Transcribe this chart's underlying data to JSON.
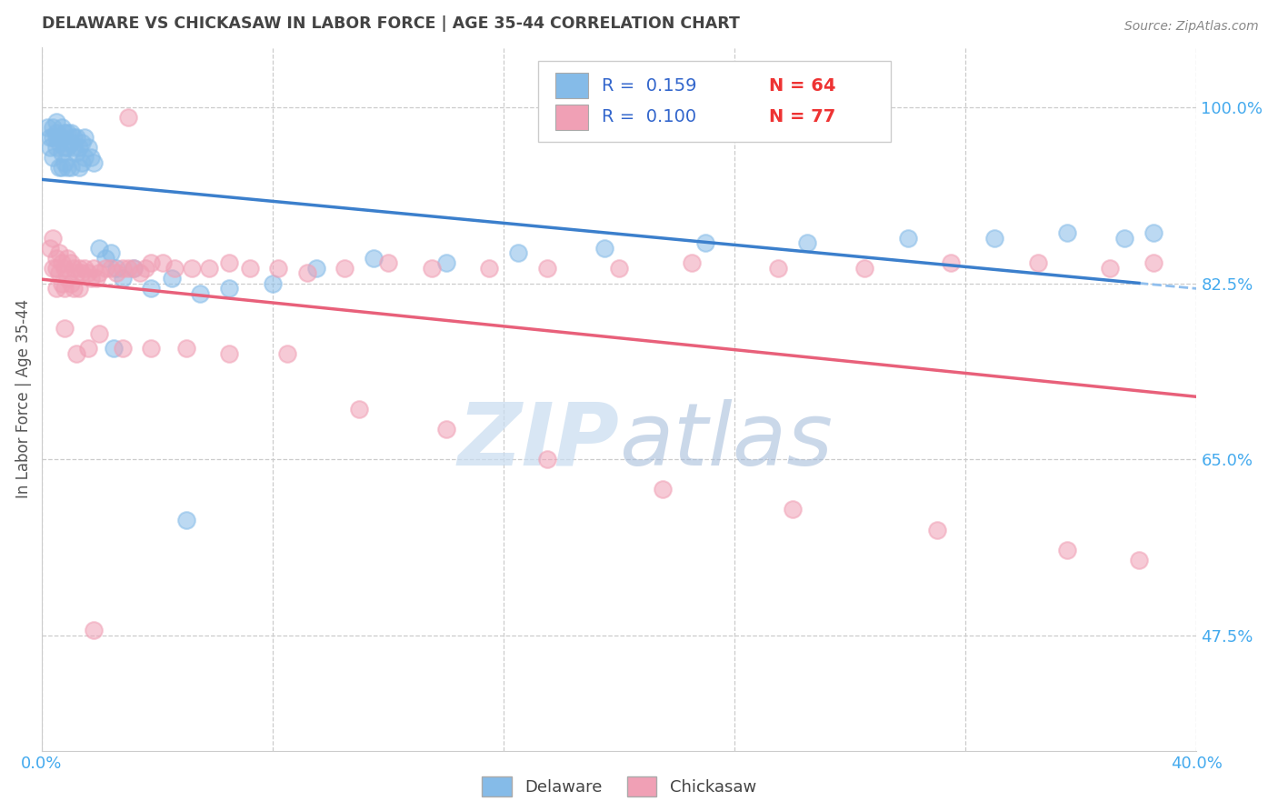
{
  "title": "DELAWARE VS CHICKASAW IN LABOR FORCE | AGE 35-44 CORRELATION CHART",
  "source": "Source: ZipAtlas.com",
  "ylabel": "In Labor Force | Age 35-44",
  "xlim": [
    0.0,
    0.4
  ],
  "ylim": [
    0.36,
    1.06
  ],
  "ytick_labels_right": [
    "100.0%",
    "82.5%",
    "65.0%",
    "47.5%"
  ],
  "ytick_vals_right": [
    1.0,
    0.825,
    0.65,
    0.475
  ],
  "watermark_zip": "ZIP",
  "watermark_atlas": "atlas",
  "delaware_R": 0.159,
  "delaware_N": 64,
  "chickasaw_R": 0.1,
  "chickasaw_N": 77,
  "delaware_color": "#85BBE8",
  "chickasaw_color": "#F0A0B5",
  "delaware_line_color": "#3B7FCC",
  "chickasaw_line_color": "#E8607A",
  "dashed_line_color": "#90BFEE",
  "grid_color": "#CCCCCC",
  "background_color": "#FFFFFF",
  "title_color": "#444444",
  "axis_label_color": "#555555",
  "right_tick_color": "#44AAEE",
  "legend_R_color": "#3366CC",
  "legend_N_color": "#EE3333",
  "del_x": [
    0.002,
    0.003,
    0.003,
    0.004,
    0.004,
    0.004,
    0.005,
    0.005,
    0.005,
    0.005,
    0.006,
    0.006,
    0.006,
    0.007,
    0.007,
    0.007,
    0.007,
    0.008,
    0.008,
    0.008,
    0.009,
    0.009,
    0.009,
    0.01,
    0.01,
    0.01,
    0.011,
    0.011,
    0.012,
    0.012,
    0.013,
    0.013,
    0.014,
    0.014,
    0.015,
    0.015,
    0.016,
    0.017,
    0.018,
    0.02,
    0.022,
    0.024,
    0.026,
    0.028,
    0.032,
    0.038,
    0.045,
    0.055,
    0.065,
    0.08,
    0.095,
    0.115,
    0.14,
    0.165,
    0.195,
    0.23,
    0.265,
    0.3,
    0.33,
    0.355,
    0.375,
    0.385,
    0.025,
    0.05
  ],
  "del_y": [
    0.98,
    0.97,
    0.96,
    0.98,
    0.97,
    0.95,
    0.985,
    0.975,
    0.97,
    0.96,
    0.97,
    0.965,
    0.94,
    0.98,
    0.97,
    0.955,
    0.94,
    0.975,
    0.96,
    0.945,
    0.975,
    0.96,
    0.94,
    0.975,
    0.965,
    0.94,
    0.97,
    0.96,
    0.97,
    0.955,
    0.96,
    0.94,
    0.965,
    0.945,
    0.97,
    0.95,
    0.96,
    0.95,
    0.945,
    0.86,
    0.85,
    0.855,
    0.84,
    0.83,
    0.84,
    0.82,
    0.83,
    0.815,
    0.82,
    0.825,
    0.84,
    0.85,
    0.845,
    0.855,
    0.86,
    0.865,
    0.865,
    0.87,
    0.87,
    0.875,
    0.87,
    0.875,
    0.76,
    0.59
  ],
  "chick_x": [
    0.003,
    0.004,
    0.004,
    0.005,
    0.005,
    0.005,
    0.006,
    0.006,
    0.007,
    0.007,
    0.008,
    0.008,
    0.009,
    0.009,
    0.01,
    0.01,
    0.011,
    0.011,
    0.012,
    0.013,
    0.013,
    0.014,
    0.015,
    0.016,
    0.017,
    0.018,
    0.019,
    0.02,
    0.022,
    0.024,
    0.026,
    0.028,
    0.03,
    0.032,
    0.034,
    0.036,
    0.038,
    0.042,
    0.046,
    0.052,
    0.058,
    0.065,
    0.072,
    0.082,
    0.092,
    0.105,
    0.12,
    0.135,
    0.155,
    0.175,
    0.2,
    0.225,
    0.255,
    0.285,
    0.315,
    0.345,
    0.37,
    0.385,
    0.008,
    0.012,
    0.016,
    0.02,
    0.028,
    0.038,
    0.05,
    0.065,
    0.085,
    0.11,
    0.14,
    0.175,
    0.215,
    0.26,
    0.31,
    0.355,
    0.38,
    0.018,
    0.03
  ],
  "chick_y": [
    0.86,
    0.87,
    0.84,
    0.85,
    0.84,
    0.82,
    0.855,
    0.835,
    0.845,
    0.825,
    0.84,
    0.82,
    0.85,
    0.83,
    0.845,
    0.825,
    0.84,
    0.82,
    0.835,
    0.84,
    0.82,
    0.835,
    0.84,
    0.835,
    0.83,
    0.84,
    0.83,
    0.835,
    0.84,
    0.84,
    0.835,
    0.84,
    0.84,
    0.84,
    0.835,
    0.84,
    0.845,
    0.845,
    0.84,
    0.84,
    0.84,
    0.845,
    0.84,
    0.84,
    0.835,
    0.84,
    0.845,
    0.84,
    0.84,
    0.84,
    0.84,
    0.845,
    0.84,
    0.84,
    0.845,
    0.845,
    0.84,
    0.845,
    0.78,
    0.755,
    0.76,
    0.775,
    0.76,
    0.76,
    0.76,
    0.755,
    0.755,
    0.7,
    0.68,
    0.65,
    0.62,
    0.6,
    0.58,
    0.56,
    0.55,
    0.48,
    0.99
  ]
}
